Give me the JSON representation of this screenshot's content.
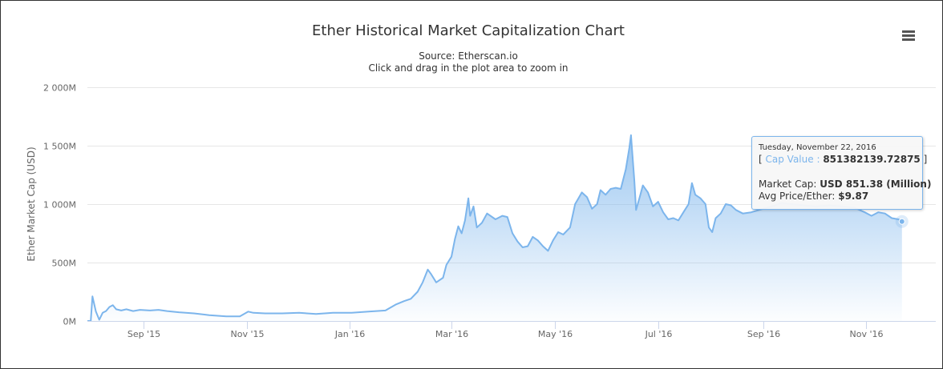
{
  "chart_data": {
    "type": "area",
    "title": "Ether Historical Market Capitalization Chart",
    "subtitle": "Source: Etherscan.io",
    "subtitle2": "Click and drag in the plot area to zoom in",
    "ylabel": "Ether Market Cap (USD)",
    "xlabel": "",
    "ylim": [
      0,
      2000
    ],
    "xlim": [
      "2015-07-30",
      "2016-12-12"
    ],
    "y_ticks": [
      0,
      500,
      1000,
      1500,
      2000
    ],
    "y_tick_labels": [
      "0M",
      "500M",
      "1 000M",
      "1 500M",
      "2 000M"
    ],
    "x_ticks": [
      "2015-09-01",
      "2015-11-01",
      "2016-01-01",
      "2016-03-01",
      "2016-05-01",
      "2016-07-01",
      "2016-09-01",
      "2016-11-01"
    ],
    "x_tick_labels": [
      "Sep '15",
      "Nov '15",
      "Jan '16",
      "Mar '16",
      "May '16",
      "Jul '16",
      "Sep '16",
      "Nov '16"
    ],
    "grid": true,
    "legend": false,
    "series_color": "#7cb5ec",
    "series": [
      {
        "points": [
          [
            "2015-07-30",
            0
          ],
          [
            "2015-08-01",
            0
          ],
          [
            "2015-08-02",
            210
          ],
          [
            "2015-08-04",
            80
          ],
          [
            "2015-08-06",
            10
          ],
          [
            "2015-08-08",
            70
          ],
          [
            "2015-08-10",
            85
          ],
          [
            "2015-08-12",
            120
          ],
          [
            "2015-08-14",
            135
          ],
          [
            "2015-08-16",
            100
          ],
          [
            "2015-08-19",
            90
          ],
          [
            "2015-08-22",
            100
          ],
          [
            "2015-08-26",
            85
          ],
          [
            "2015-08-30",
            95
          ],
          [
            "2015-09-05",
            90
          ],
          [
            "2015-09-10",
            95
          ],
          [
            "2015-09-15",
            85
          ],
          [
            "2015-09-22",
            75
          ],
          [
            "2015-10-01",
            65
          ],
          [
            "2015-10-10",
            50
          ],
          [
            "2015-10-20",
            40
          ],
          [
            "2015-10-28",
            40
          ],
          [
            "2015-11-02",
            80
          ],
          [
            "2015-11-05",
            70
          ],
          [
            "2015-11-12",
            65
          ],
          [
            "2015-11-22",
            65
          ],
          [
            "2015-12-02",
            70
          ],
          [
            "2015-12-12",
            60
          ],
          [
            "2015-12-22",
            70
          ],
          [
            "2016-01-02",
            70
          ],
          [
            "2016-01-12",
            80
          ],
          [
            "2016-01-22",
            90
          ],
          [
            "2016-01-28",
            140
          ],
          [
            "2016-02-02",
            170
          ],
          [
            "2016-02-06",
            190
          ],
          [
            "2016-02-10",
            250
          ],
          [
            "2016-02-13",
            330
          ],
          [
            "2016-02-16",
            440
          ],
          [
            "2016-02-18",
            400
          ],
          [
            "2016-02-21",
            330
          ],
          [
            "2016-02-23",
            350
          ],
          [
            "2016-02-25",
            370
          ],
          [
            "2016-02-27",
            480
          ],
          [
            "2016-03-01",
            550
          ],
          [
            "2016-03-03",
            700
          ],
          [
            "2016-03-05",
            810
          ],
          [
            "2016-03-07",
            750
          ],
          [
            "2016-03-09",
            860
          ],
          [
            "2016-03-11",
            1050
          ],
          [
            "2016-03-12",
            900
          ],
          [
            "2016-03-14",
            980
          ],
          [
            "2016-03-16",
            800
          ],
          [
            "2016-03-19",
            840
          ],
          [
            "2016-03-22",
            920
          ],
          [
            "2016-03-27",
            870
          ],
          [
            "2016-03-31",
            900
          ],
          [
            "2016-04-03",
            890
          ],
          [
            "2016-04-06",
            750
          ],
          [
            "2016-04-09",
            680
          ],
          [
            "2016-04-12",
            630
          ],
          [
            "2016-04-15",
            640
          ],
          [
            "2016-04-18",
            720
          ],
          [
            "2016-04-21",
            690
          ],
          [
            "2016-04-24",
            640
          ],
          [
            "2016-04-27",
            600
          ],
          [
            "2016-04-30",
            690
          ],
          [
            "2016-05-03",
            760
          ],
          [
            "2016-05-06",
            740
          ],
          [
            "2016-05-10",
            800
          ],
          [
            "2016-05-13",
            1000
          ],
          [
            "2016-05-15",
            1050
          ],
          [
            "2016-05-17",
            1100
          ],
          [
            "2016-05-20",
            1060
          ],
          [
            "2016-05-23",
            960
          ],
          [
            "2016-05-26",
            1000
          ],
          [
            "2016-05-28",
            1120
          ],
          [
            "2016-05-31",
            1080
          ],
          [
            "2016-06-03",
            1130
          ],
          [
            "2016-06-06",
            1140
          ],
          [
            "2016-06-09",
            1130
          ],
          [
            "2016-06-12",
            1300
          ],
          [
            "2016-06-14",
            1480
          ],
          [
            "2016-06-15",
            1590
          ],
          [
            "2016-06-17",
            1200
          ],
          [
            "2016-06-18",
            950
          ],
          [
            "2016-06-20",
            1050
          ],
          [
            "2016-06-22",
            1160
          ],
          [
            "2016-06-25",
            1100
          ],
          [
            "2016-06-28",
            980
          ],
          [
            "2016-07-01",
            1020
          ],
          [
            "2016-07-04",
            930
          ],
          [
            "2016-07-07",
            870
          ],
          [
            "2016-07-10",
            880
          ],
          [
            "2016-07-13",
            860
          ],
          [
            "2016-07-16",
            930
          ],
          [
            "2016-07-19",
            1000
          ],
          [
            "2016-07-21",
            1180
          ],
          [
            "2016-07-23",
            1080
          ],
          [
            "2016-07-26",
            1050
          ],
          [
            "2016-07-29",
            1000
          ],
          [
            "2016-07-31",
            800
          ],
          [
            "2016-08-02",
            760
          ],
          [
            "2016-08-04",
            880
          ],
          [
            "2016-08-07",
            920
          ],
          [
            "2016-08-10",
            1000
          ],
          [
            "2016-08-13",
            990
          ],
          [
            "2016-08-16",
            950
          ],
          [
            "2016-08-20",
            920
          ],
          [
            "2016-08-25",
            930
          ],
          [
            "2016-09-01",
            960
          ],
          [
            "2016-09-06",
            980
          ],
          [
            "2016-09-12",
            1010
          ],
          [
            "2016-09-18",
            1000
          ],
          [
            "2016-09-25",
            990
          ],
          [
            "2016-10-02",
            980
          ],
          [
            "2016-10-10",
            990
          ],
          [
            "2016-10-18",
            980
          ],
          [
            "2016-10-25",
            970
          ],
          [
            "2016-10-31",
            930
          ],
          [
            "2016-11-04",
            900
          ],
          [
            "2016-11-08",
            930
          ],
          [
            "2016-11-12",
            920
          ],
          [
            "2016-11-16",
            880
          ],
          [
            "2016-11-20",
            870
          ],
          [
            "2016-11-22",
            851
          ]
        ]
      }
    ],
    "tooltip": {
      "point": [
        "2016-11-22",
        851.38
      ],
      "date": "Tuesday, November 22, 2016",
      "bracket_open": "[",
      "cap_label": "Cap Value :",
      "cap_value": "851382139.72875",
      "bracket_close": "]",
      "market_cap_label": "Market Cap:",
      "market_cap_value": "USD 851.38 (Million)",
      "avg_price_label": "Avg Price/Ether:",
      "avg_price_value": "$9.87"
    }
  }
}
